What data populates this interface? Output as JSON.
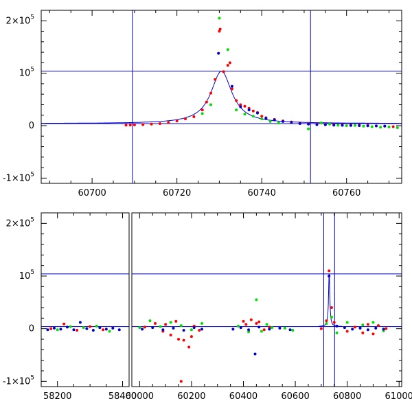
{
  "chart_data": [
    {
      "type": "scatter",
      "panel": "top",
      "xlim": [
        60688,
        60773
      ],
      "ylim": [
        -110000,
        220000
      ],
      "xticks": [
        60700,
        60720,
        60740,
        60760
      ],
      "xtick_labels": [
        "60700",
        "60720",
        "60740",
        "60760"
      ],
      "yticks": [
        -100000,
        0,
        100000,
        200000
      ],
      "ytick_labels": [
        {
          "base": "-1×10",
          "exp": "5"
        },
        {
          "base": "0",
          "exp": ""
        },
        {
          "base": "10",
          "exp": "5"
        },
        {
          "base": "2×10",
          "exp": "5"
        }
      ],
      "hlines": [
        104000,
        4000
      ],
      "vlines": [
        60709.5,
        60751.5
      ],
      "model_curve": {
        "peak_x": 60730.5,
        "peak_y": 104000,
        "baseline": 4000,
        "half_width": 3.0,
        "color": "#0000cc"
      },
      "series": [
        {
          "color": "#ff0000",
          "points": [
            [
              60708,
              1000
            ],
            [
              60709,
              1200
            ],
            [
              60710,
              1500
            ],
            [
              60712,
              2000
            ],
            [
              60714,
              3000
            ],
            [
              60716,
              4000
            ],
            [
              60718,
              6000
            ],
            [
              60720,
              9000
            ],
            [
              60722,
              13000
            ],
            [
              60724,
              17000
            ],
            [
              60726,
              30000
            ],
            [
              60727,
              45000
            ],
            [
              60728,
              62000
            ],
            [
              60729,
              88000
            ],
            [
              60730,
              180000
            ],
            [
              60730.2,
              184000
            ],
            [
              60731,
              103000
            ],
            [
              60732,
              115000
            ],
            [
              60732.5,
              120000
            ],
            [
              60733,
              70000
            ],
            [
              60734,
              48000
            ],
            [
              60735,
              40000
            ],
            [
              60736,
              37000
            ],
            [
              60737,
              33000
            ],
            [
              60738,
              28000
            ],
            [
              60739,
              25000
            ],
            [
              60740,
              18000
            ],
            [
              60741,
              15000
            ],
            [
              60743,
              12000
            ],
            [
              60745,
              9000
            ],
            [
              60747,
              7000
            ],
            [
              60749,
              5000
            ],
            [
              60751,
              4000
            ],
            [
              60753,
              3000
            ],
            [
              60755,
              2500
            ],
            [
              60757,
              2000
            ],
            [
              60759,
              1500
            ],
            [
              60761,
              1000
            ],
            [
              60763,
              800
            ],
            [
              60765,
              500
            ],
            [
              60767,
              -500
            ],
            [
              60769,
              -1000
            ],
            [
              60771,
              -2000
            ]
          ]
        },
        {
          "color": "#00dd00",
          "points": [
            [
              60726,
              23000
            ],
            [
              60728,
              40000
            ],
            [
              60730,
              205000
            ],
            [
              60732,
              145000
            ],
            [
              60734,
              30000
            ],
            [
              60736,
              22000
            ],
            [
              60738,
              18000
            ],
            [
              60740,
              13000
            ],
            [
              60742,
              8000
            ],
            [
              60744,
              5000
            ],
            [
              60751,
              -6000
            ],
            [
              60754,
              5000
            ],
            [
              60756,
              3000
            ],
            [
              60758,
              1000
            ],
            [
              60760,
              0
            ],
            [
              60762,
              500
            ],
            [
              60764,
              -1000
            ],
            [
              60766,
              -2000
            ],
            [
              60768,
              -3000
            ],
            [
              60770,
              -2500
            ],
            [
              60772,
              -4000
            ]
          ]
        },
        {
          "color": "#0000cc",
          "points": [
            [
              60729.8,
              138000
            ],
            [
              60733,
              75000
            ],
            [
              60735,
              36000
            ],
            [
              60737,
              30000
            ],
            [
              60739,
              24000
            ],
            [
              60741,
              14000
            ],
            [
              60743,
              11000
            ],
            [
              60745,
              8000
            ],
            [
              60747,
              6000
            ],
            [
              60749,
              4000
            ],
            [
              60751,
              3000
            ],
            [
              60753,
              2000
            ],
            [
              60755,
              1800
            ],
            [
              60757,
              1000
            ],
            [
              60759,
              600
            ],
            [
              60761,
              300
            ],
            [
              60763,
              0
            ],
            [
              60765,
              -300
            ],
            [
              60767,
              -500
            ],
            [
              60769,
              -800
            ]
          ]
        }
      ]
    },
    {
      "type": "scatter",
      "panel": "bottom",
      "broken_axis": true,
      "segments": [
        {
          "xlim": [
            58150,
            58420
          ],
          "xticks": [
            58200,
            58400
          ],
          "xtick_labels": [
            "58200",
            "58400"
          ]
        },
        {
          "xlim": [
            59970,
            61010
          ],
          "xticks": [
            60000,
            60200,
            60400,
            60600,
            60800,
            61000
          ],
          "xtick_labels": [
            "60000",
            "60200",
            "60400",
            "60600",
            "60800",
            "61000"
          ]
        }
      ],
      "ylim": [
        -110000,
        220000
      ],
      "yticks": [
        -100000,
        0,
        100000,
        200000
      ],
      "ytick_labels": [
        {
          "base": "-1×10",
          "exp": "5"
        },
        {
          "base": "0",
          "exp": ""
        },
        {
          "base": "10",
          "exp": "5"
        },
        {
          "base": "2×10",
          "exp": "5"
        }
      ],
      "hlines": [
        104000,
        4000
      ],
      "vlines": [
        60709.5,
        60751.5
      ],
      "model_curve": {
        "peak_x": 60730.5,
        "peak_y": 104000,
        "baseline": 4000,
        "half_width": 3.0,
        "color": "#0000cc"
      },
      "series": [
        {
          "color": "#ff0000",
          "points": [
            [
              58180,
              0
            ],
            [
              58220,
              9000
            ],
            [
              58260,
              -3000
            ],
            [
              58300,
              4000
            ],
            [
              58340,
              -2000
            ],
            [
              60020,
              3000
            ],
            [
              60060,
              10000
            ],
            [
              60090,
              -5000
            ],
            [
              60100,
              8000
            ],
            [
              60120,
              -12000
            ],
            [
              60140,
              14000
            ],
            [
              60150,
              -20000
            ],
            [
              60160,
              -100000
            ],
            [
              60170,
              -22000
            ],
            [
              60190,
              -35000
            ],
            [
              60200,
              -15000
            ],
            [
              60210,
              5000
            ],
            [
              60230,
              -3000
            ],
            [
              60400,
              14000
            ],
            [
              60410,
              8000
            ],
            [
              60430,
              17000
            ],
            [
              60450,
              10000
            ],
            [
              60460,
              13000
            ],
            [
              60480,
              -2000
            ],
            [
              60500,
              3000
            ],
            [
              60700,
              0
            ],
            [
              60720,
              15000
            ],
            [
              60730,
              110000
            ],
            [
              60740,
              40000
            ],
            [
              60750,
              12000
            ],
            [
              60800,
              -5000
            ],
            [
              60830,
              3000
            ],
            [
              60860,
              -8000
            ],
            [
              60880,
              8000
            ],
            [
              60900,
              -10000
            ],
            [
              60920,
              6000
            ],
            [
              60950,
              0
            ]
          ]
        },
        {
          "color": "#00dd00",
          "points": [
            [
              58200,
              -2000
            ],
            [
              58240,
              4000
            ],
            [
              58280,
              2000
            ],
            [
              58320,
              5000
            ],
            [
              58360,
              -5000
            ],
            [
              60000,
              2000
            ],
            [
              60040,
              15000
            ],
            [
              60080,
              4000
            ],
            [
              60120,
              12000
            ],
            [
              60160,
              6000
            ],
            [
              60200,
              -2000
            ],
            [
              60240,
              10000
            ],
            [
              60380,
              5000
            ],
            [
              60420,
              -6000
            ],
            [
              60450,
              55000
            ],
            [
              60470,
              -5000
            ],
            [
              60490,
              8000
            ],
            [
              60510,
              2000
            ],
            [
              60560,
              1000
            ],
            [
              60590,
              -3000
            ],
            [
              60720,
              10000
            ],
            [
              60740,
              22000
            ],
            [
              60760,
              -8000
            ],
            [
              60800,
              12000
            ],
            [
              60860,
              7000
            ],
            [
              60900,
              12000
            ],
            [
              60940,
              -4000
            ]
          ]
        },
        {
          "color": "#0000cc",
          "points": [
            [
              58170,
              -2000
            ],
            [
              58190,
              1000
            ],
            [
              58210,
              -1000
            ],
            [
              58230,
              3000
            ],
            [
              58250,
              -2000
            ],
            [
              58270,
              12000
            ],
            [
              58290,
              0
            ],
            [
              58310,
              -3000
            ],
            [
              58330,
              2000
            ],
            [
              58350,
              -1000
            ],
            [
              58370,
              1000
            ],
            [
              58390,
              -2000
            ],
            [
              60010,
              -1000
            ],
            [
              60050,
              2000
            ],
            [
              60090,
              -2000
            ],
            [
              60130,
              1000
            ],
            [
              60170,
              -3000
            ],
            [
              60210,
              2000
            ],
            [
              60240,
              -1000
            ],
            [
              60360,
              -1000
            ],
            [
              60390,
              2000
            ],
            [
              60420,
              -2000
            ],
            [
              60445,
              -48000
            ],
            [
              60460,
              3000
            ],
            [
              60500,
              -1000
            ],
            [
              60540,
              1000
            ],
            [
              60580,
              -2000
            ],
            [
              60730,
              100000
            ],
            [
              60760,
              5000
            ],
            [
              60790,
              2000
            ],
            [
              60820,
              -1000
            ],
            [
              60850,
              1000
            ],
            [
              60880,
              -2000
            ],
            [
              60910,
              1000
            ],
            [
              60940,
              -1000
            ]
          ]
        }
      ]
    }
  ]
}
